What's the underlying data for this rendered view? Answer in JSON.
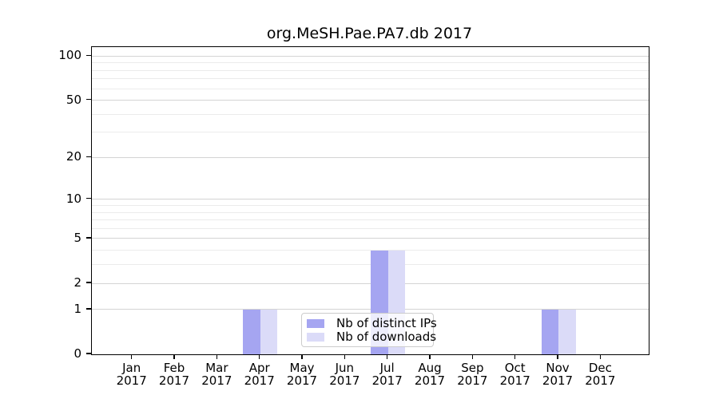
{
  "title": "org.MeSH.Pae.PA7.db 2017",
  "chart_data": {
    "type": "bar",
    "title": "org.MeSH.Pae.PA7.db 2017",
    "categories": [
      {
        "month": "Jan",
        "year": "2017"
      },
      {
        "month": "Feb",
        "year": "2017"
      },
      {
        "month": "Mar",
        "year": "2017"
      },
      {
        "month": "Apr",
        "year": "2017"
      },
      {
        "month": "May",
        "year": "2017"
      },
      {
        "month": "Jun",
        "year": "2017"
      },
      {
        "month": "Jul",
        "year": "2017"
      },
      {
        "month": "Aug",
        "year": "2017"
      },
      {
        "month": "Sep",
        "year": "2017"
      },
      {
        "month": "Oct",
        "year": "2017"
      },
      {
        "month": "Nov",
        "year": "2017"
      },
      {
        "month": "Dec",
        "year": "2017"
      }
    ],
    "series": [
      {
        "name": "Nb of distinct IPs",
        "color": "#a5a5f1",
        "values": [
          0,
          0,
          0,
          1,
          0,
          0,
          4,
          0,
          0,
          0,
          1,
          0
        ]
      },
      {
        "name": "Nb of downloads",
        "color": "#dbdbf8",
        "values": [
          0,
          0,
          0,
          1,
          0,
          0,
          4,
          0,
          0,
          0,
          1,
          0
        ]
      }
    ],
    "xlabel": "",
    "ylabel": "",
    "y_scale": "log1p",
    "y_ticks": [
      0,
      1,
      2,
      5,
      10,
      20,
      50,
      100
    ],
    "y_minor_gridlines": [
      3,
      4,
      6,
      7,
      8,
      9,
      30,
      40,
      60,
      70,
      80,
      90
    ],
    "ylim": [
      0,
      110
    ],
    "grid": true,
    "legend_position": "lower center"
  },
  "colors": {
    "major_grid": "#d4d4d4",
    "minor_grid": "#ebebeb",
    "spine": "#000000"
  }
}
